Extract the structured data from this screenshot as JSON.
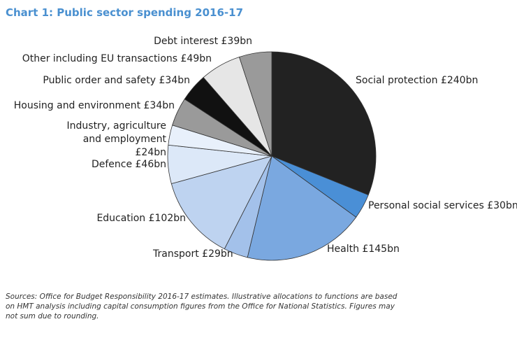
{
  "chart_data": {
    "type": "pie",
    "title": "Chart 1: Public sector spending 2016-17",
    "categories": [
      "Social protection",
      "Personal social services",
      "Health",
      "Transport",
      "Education",
      "Defence",
      "Industry, agriculture and employment",
      "Housing and environment",
      "Public order and safety",
      "Other including EU transactions",
      "Debt interest"
    ],
    "values": [
      240,
      30,
      145,
      29,
      102,
      46,
      24,
      34,
      34,
      49,
      39
    ],
    "value_labels": [
      "£240bn",
      "£30bn",
      "£145bn",
      "£29bn",
      "£102bn",
      "£46bn",
      "£24bn",
      "£34bn",
      "£34bn",
      "£49bn",
      "£39bn"
    ],
    "colors": [
      "#222222",
      "#4a8fd6",
      "#7aa8e0",
      "#a3c1ea",
      "#bed3f0",
      "#dce8f8",
      "#e8f0fb",
      "#9a9a9a",
      "#111111",
      "#e6e6e6",
      "#9a9a9a"
    ],
    "note": "Sources: Office for Budget Responsibility 2016-17 estimates. Illustrative allocations to functions are based on HMT analysis including capital consumption figures from the Office for National Statistics. Figures may not sum due to rounding."
  }
}
